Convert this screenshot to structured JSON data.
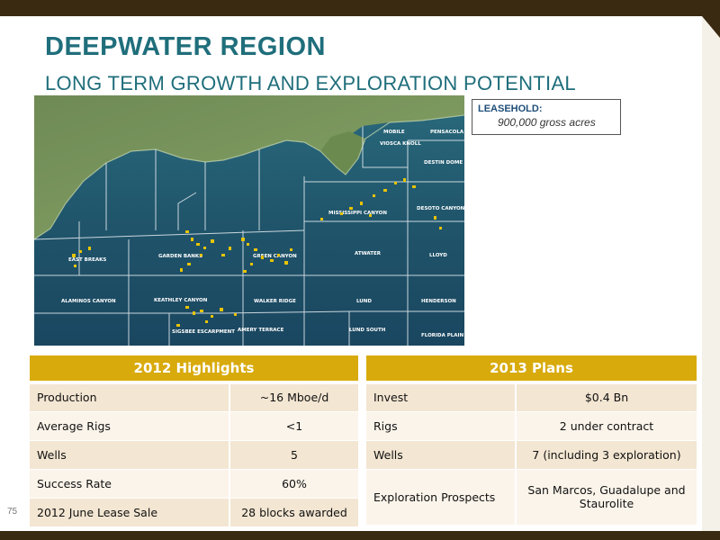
{
  "slide": {
    "title": "DEEPWATER REGION",
    "subtitle": "LONG TERM GROWTH AND EXPLORATION POTENTIAL",
    "page_number": "75"
  },
  "leasehold": {
    "label": "LEASEHOLD:",
    "value": "900,000 gross acres"
  },
  "map": {
    "areas": [
      "MOBILE",
      "PENSACOLA",
      "VIOSCA KNOLL",
      "DESTIN DOME",
      "MISSISSIPPI CANYON",
      "DESOTO CANYON",
      "EAST BREAKS",
      "GARDEN BANKS",
      "GREEN CANYON",
      "ATWATER",
      "LLOYD",
      "ALAMINOS CANYON",
      "KEATHLEY CANYON",
      "WALKER RIDGE",
      "LUND",
      "HENDERSON",
      "SIGSBEE ESCARPMENT",
      "AMERY TERRACE",
      "LUND SOUTH",
      "FLORIDA PLAIN"
    ]
  },
  "highlights_2012": {
    "header": "2012 Highlights",
    "rows": [
      {
        "label": "Production",
        "value": "~16 Mboe/d"
      },
      {
        "label": "Average Rigs",
        "value": "<1"
      },
      {
        "label": "Wells",
        "value": "5"
      },
      {
        "label": "Success Rate",
        "value": "60%"
      },
      {
        "label": "2012 June Lease Sale",
        "value": "28 blocks awarded"
      }
    ]
  },
  "plans_2013": {
    "header": "2013 Plans",
    "rows": [
      {
        "label": "Invest",
        "value": "$0.4 Bn"
      },
      {
        "label": "Rigs",
        "value": "2 under contract"
      },
      {
        "label": "Wells",
        "value": "7 (including 3 exploration)"
      },
      {
        "label": "Exploration Prospects",
        "value": "San Marcos, Guadalupe and Staurolite"
      }
    ]
  },
  "colors": {
    "title": "#1f6e7b",
    "table_header": "#d8aa0c",
    "frame": "#3a2a12",
    "lease_block": "#e8c400"
  }
}
